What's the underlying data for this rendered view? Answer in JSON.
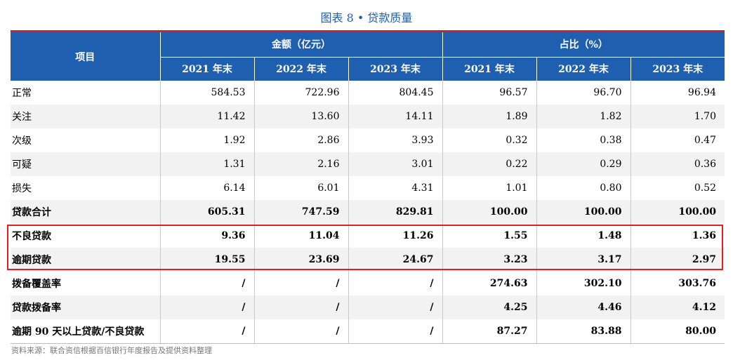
{
  "caption": "图表 8 • 贷款质量",
  "header": {
    "item": "项目",
    "group_amount": "金额（亿元）",
    "group_ratio": "占比（%）",
    "years": [
      "2021 年末",
      "2022 年末",
      "2023 年末"
    ]
  },
  "rows": [
    {
      "label": "正常",
      "values": [
        "584.53",
        "722.96",
        "804.45",
        "96.57",
        "96.70",
        "96.94"
      ]
    },
    {
      "label": "关注",
      "values": [
        "11.42",
        "13.60",
        "14.11",
        "1.89",
        "1.82",
        "1.70"
      ]
    },
    {
      "label": "次级",
      "values": [
        "1.92",
        "2.86",
        "3.93",
        "0.32",
        "0.38",
        "0.47"
      ]
    },
    {
      "label": "可疑",
      "values": [
        "1.31",
        "2.16",
        "3.01",
        "0.22",
        "0.29",
        "0.36"
      ]
    },
    {
      "label": "损失",
      "values": [
        "6.14",
        "6.01",
        "4.31",
        "1.01",
        "0.80",
        "0.52"
      ]
    },
    {
      "label": "贷款合计",
      "values": [
        "605.31",
        "747.59",
        "829.81",
        "100.00",
        "100.00",
        "100.00"
      ]
    },
    {
      "label": "不良贷款",
      "values": [
        "9.36",
        "11.04",
        "11.26",
        "1.55",
        "1.48",
        "1.36"
      ]
    },
    {
      "label": "逾期贷款",
      "values": [
        "19.55",
        "23.69",
        "24.67",
        "3.23",
        "3.17",
        "2.97"
      ]
    },
    {
      "label": "拨备覆盖率",
      "values": [
        "/",
        "/",
        "/",
        "274.63",
        "302.10",
        "303.76"
      ]
    },
    {
      "label": "贷款拨备率",
      "values": [
        "/",
        "/",
        "/",
        "4.25",
        "4.46",
        "4.12"
      ]
    },
    {
      "label": "逾期 90 天以上贷款/不良贷款",
      "values": [
        "/",
        "/",
        "/",
        "87.27",
        "83.88",
        "80.00"
      ]
    }
  ],
  "source": "资料来源：联合资信根据百信银行年度报告及提供资料整理"
}
